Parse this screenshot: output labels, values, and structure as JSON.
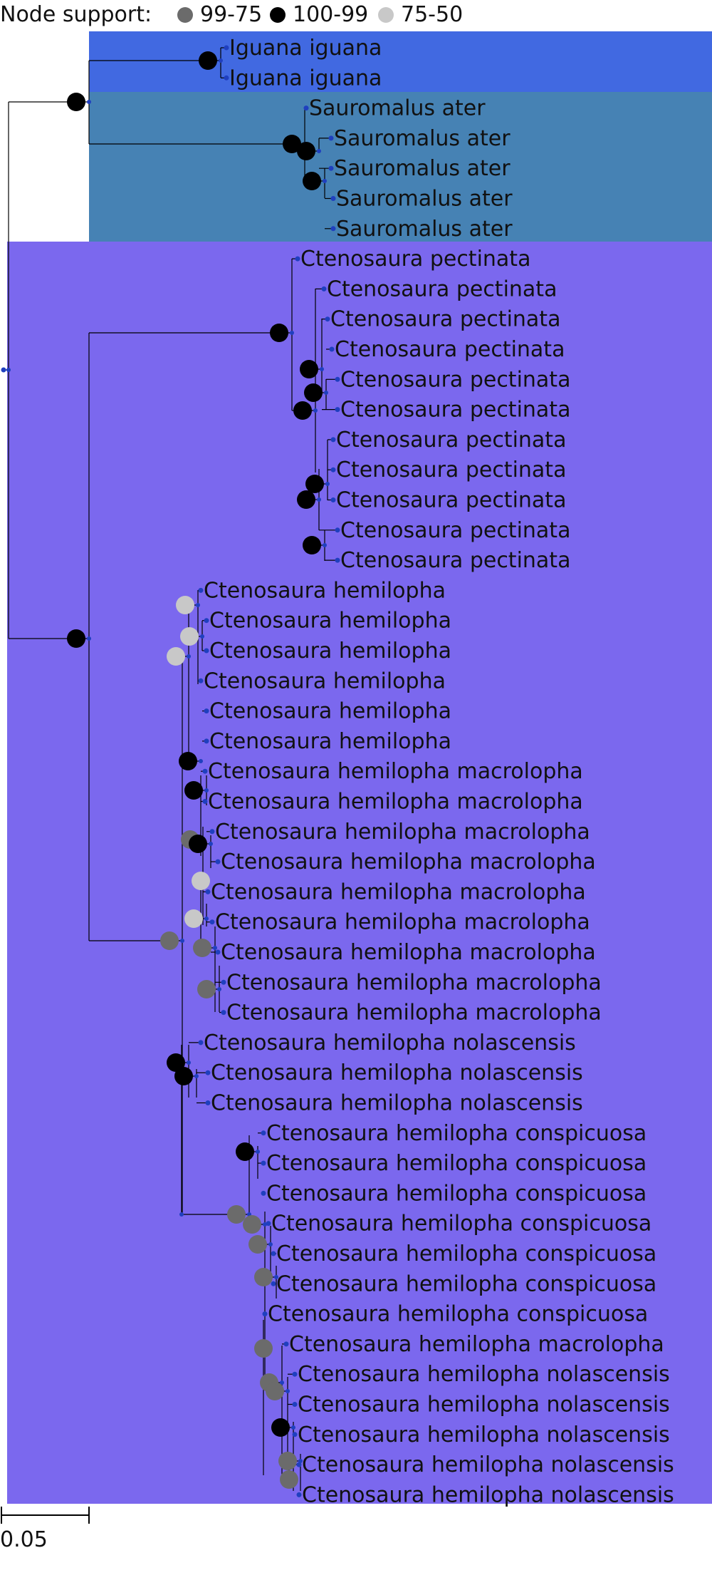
{
  "legend": {
    "title": "Node support:",
    "items": [
      {
        "label": "99-75",
        "color": "#6b6b6b"
      },
      {
        "label": "100-99",
        "color": "#000000"
      },
      {
        "label": "75-50",
        "color": "#c8c8c8"
      }
    ]
  },
  "scale_bar": {
    "label": "0.05"
  },
  "colors": {
    "iguana_block": "#4169e1",
    "sauromalus_block": "#4682b4",
    "ctenosaura_block": "#7b68ee",
    "branch": "#000000",
    "tip_dot": "#1f3fbf"
  },
  "tips": [
    "Iguana iguana",
    "Iguana iguana",
    "Sauromalus ater",
    "Sauromalus ater",
    "Sauromalus ater",
    "Sauromalus ater",
    "Sauromalus ater",
    "Ctenosaura pectinata",
    "Ctenosaura pectinata",
    "Ctenosaura pectinata",
    "Ctenosaura pectinata",
    "Ctenosaura pectinata",
    "Ctenosaura pectinata",
    "Ctenosaura pectinata",
    "Ctenosaura pectinata",
    "Ctenosaura pectinata",
    "Ctenosaura pectinata",
    "Ctenosaura pectinata",
    "Ctenosaura hemilopha",
    "Ctenosaura hemilopha",
    "Ctenosaura hemilopha",
    "Ctenosaura hemilopha",
    "Ctenosaura hemilopha",
    "Ctenosaura hemilopha",
    "Ctenosaura hemilopha macrolopha",
    "Ctenosaura hemilopha macrolopha",
    "Ctenosaura hemilopha macrolopha",
    "Ctenosaura hemilopha macrolopha",
    "Ctenosaura hemilopha macrolopha",
    "Ctenosaura hemilopha macrolopha",
    "Ctenosaura hemilopha macrolopha",
    "Ctenosaura hemilopha macrolopha",
    "Ctenosaura hemilopha macrolopha",
    "Ctenosaura hemilopha nolascensis",
    "Ctenosaura hemilopha nolascensis",
    "Ctenosaura hemilopha nolascensis",
    "Ctenosaura hemilopha conspicuosa",
    "Ctenosaura hemilopha conspicuosa",
    "Ctenosaura hemilopha conspicuosa",
    "Ctenosaura hemilopha conspicuosa",
    "Ctenosaura hemilopha conspicuosa",
    "Ctenosaura hemilopha conspicuosa",
    "Ctenosaura hemilopha conspicuosa",
    "Ctenosaura hemilopha macrolopha",
    "Ctenosaura hemilopha nolascensis",
    "Ctenosaura hemilopha nolascensis",
    "Ctenosaura hemilopha nolascensis",
    "Ctenosaura hemilopha nolascensis",
    "Ctenosaura hemilopha nolascensis"
  ]
}
